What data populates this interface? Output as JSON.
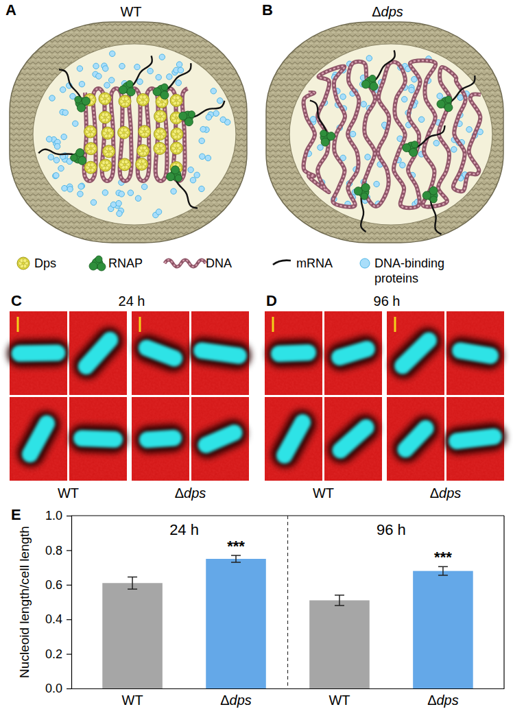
{
  "panels": {
    "A": {
      "label": "A",
      "title": "WT"
    },
    "B": {
      "label": "B",
      "title": "Δdps"
    },
    "legend": [
      {
        "lines": [
          "Dps"
        ]
      },
      {
        "lines": [
          "RNAP"
        ]
      },
      {
        "lines": [
          "DNA"
        ]
      },
      {
        "lines": [
          "mRNA"
        ]
      },
      {
        "lines": [
          "DNA-binding",
          "proteins"
        ]
      }
    ],
    "C": {
      "label": "C",
      "title": "24 h",
      "groups": [
        "WT",
        "Δdps"
      ]
    },
    "D": {
      "label": "D",
      "title": "96 h",
      "groups": [
        "WT",
        "Δdps"
      ]
    },
    "E": {
      "label": "E"
    }
  },
  "chart_data": {
    "type": "bar",
    "y_label": "Nucleoid length/cell length",
    "categories": [
      "WT",
      "Δdps",
      "WT",
      "Δdps"
    ],
    "values": [
      0.61,
      0.75,
      0.51,
      0.68
    ],
    "errors": [
      0.035,
      0.02,
      0.03,
      0.025
    ],
    "colors": [
      "#a6a6a6",
      "#64a8e8",
      "#a6a6a6",
      "#64a8e8"
    ],
    "groups": [
      "24 h",
      "96 h"
    ],
    "significance": [
      null,
      "***",
      null,
      "***"
    ],
    "ylim": [
      0,
      1
    ],
    "yticks": [
      {
        "value": 0,
        "label": "0.0"
      },
      {
        "value": 0.2,
        "label": "0.2"
      },
      {
        "value": 0.4,
        "label": "0.4"
      },
      {
        "value": 0.6,
        "label": "0.6"
      },
      {
        "value": 0.8,
        "label": "0.8"
      },
      {
        "value": 1,
        "label": "1.0"
      }
    ]
  }
}
